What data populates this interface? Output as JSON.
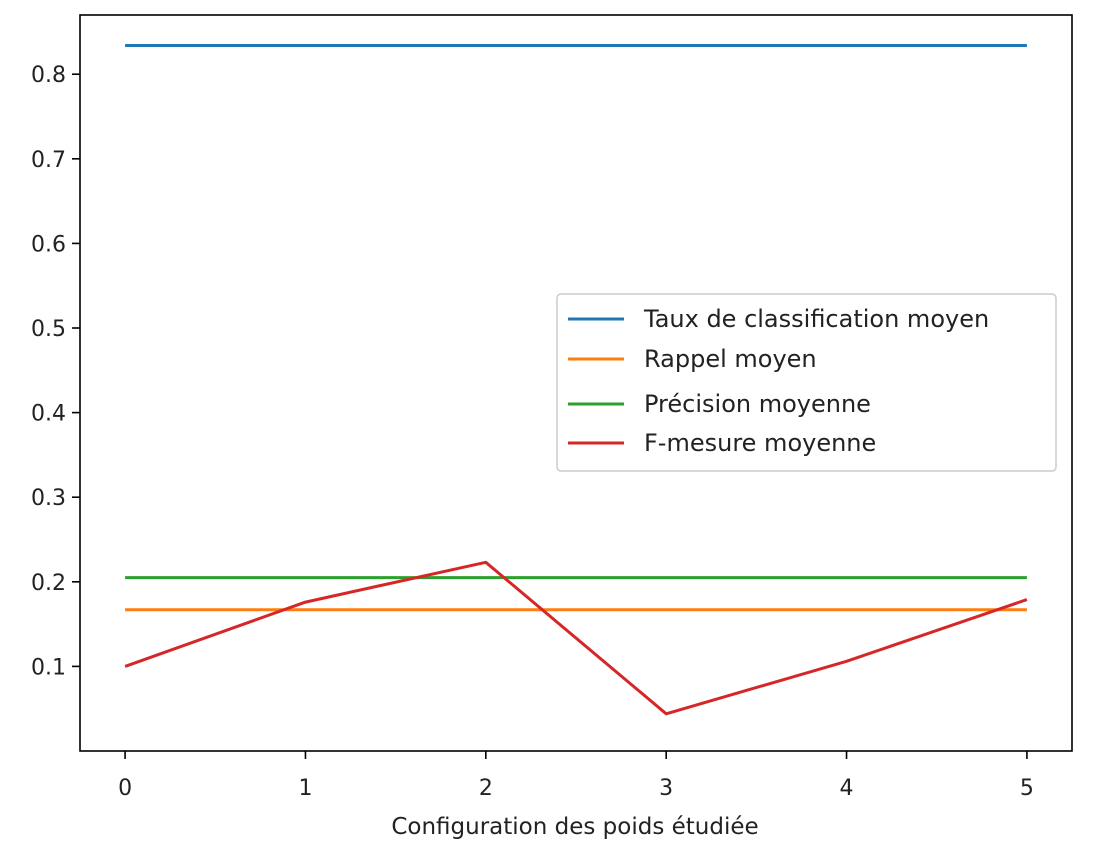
{
  "chart_data": {
    "type": "line",
    "title": "",
    "xlabel": "Configuration des poids étudiée",
    "ylabel": "",
    "x": [
      0,
      1,
      2,
      3,
      4,
      5
    ],
    "xticks": [
      0,
      1,
      2,
      3,
      4,
      5
    ],
    "yticks": [
      0.1,
      0.2,
      0.3,
      0.4,
      0.5,
      0.6,
      0.7,
      0.8
    ],
    "xlim": [
      -0.25,
      5.25
    ],
    "ylim": [
      0.0,
      0.87
    ],
    "grid": false,
    "legend_position": "center-right",
    "series": [
      {
        "name": "Taux de classification moyen",
        "color": "#1f77b4",
        "values": [
          0.834,
          0.834,
          0.834,
          0.834,
          0.834,
          0.834
        ]
      },
      {
        "name": "Rappel moyen",
        "color": "#ff7f0e",
        "values": [
          0.167,
          0.167,
          0.167,
          0.167,
          0.167,
          0.167
        ]
      },
      {
        "name": "Précision moyenne",
        "color": "#2ca02c",
        "values": [
          0.205,
          0.205,
          0.205,
          0.205,
          0.205,
          0.205
        ]
      },
      {
        "name": "F-mesure moyenne",
        "color": "#d62728",
        "values": [
          0.1,
          0.176,
          0.223,
          0.044,
          0.106,
          0.179
        ]
      }
    ]
  }
}
